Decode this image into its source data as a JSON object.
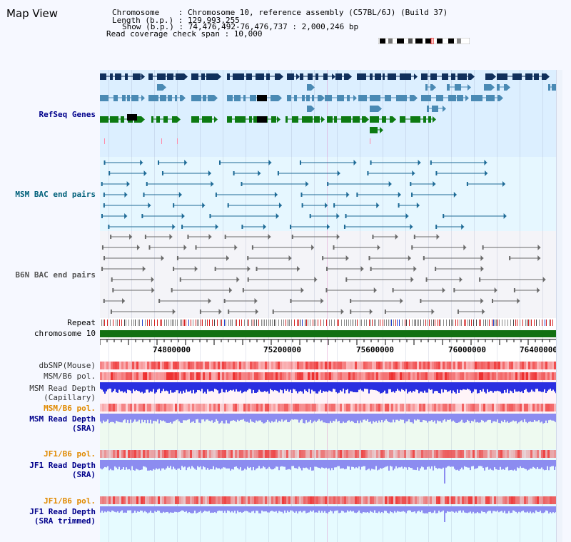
{
  "title": "Map View",
  "info": {
    "line1": "Chromosome    : Chromosome 10, reference assembly (C57BL/6J) (Build 37)",
    "line2": "Length (b.p.) : 129,993,255",
    "line3": "Show (b.p.) : 74,476,492-76,476,737 : 2,000,246 bp",
    "line4": "Read coverage check span : 10,000"
  },
  "tracks": {
    "refseq": "RefSeq Genes",
    "msm_bac": "MSM BAC end pairs",
    "b6n_bac": "B6N BAC end pairs",
    "repeat": "Repeat",
    "chromosome": "chromosome 10",
    "dbsnp": "dbSNP(Mouse)",
    "msm_pol1": "MSM/B6 pol.",
    "msm_depth_cap": "MSM Read Depth\n(Capillary)",
    "msm_pol2": "MSM/B6 pol.",
    "msm_depth_sra": "MSM Read Depth\n(SRA)",
    "jf1_pol1": "JF1/B6 pol.",
    "jf1_depth_sra": "JF1 Read Depth\n(SRA)",
    "jf1_pol2": "JF1/B6 pol.",
    "jf1_depth_trim": "JF1 Read Depth\n(SRA trimmed)"
  },
  "axis": {
    "ticks": [
      "74800000",
      "75200000",
      "75600000",
      "76000000",
      "76400000"
    ]
  },
  "colors": {
    "refseq_bg": "#dcefff",
    "bac_bg": "#e6f7ff",
    "b6n_bg": "#f4f4f8",
    "gene_navy": "#10305c",
    "gene_steel": "#4a8ab4",
    "gene_green": "#0d7a12",
    "chromosome_green": "#127012",
    "depth_blue": "#2a2fe0",
    "depth_violet": "#8c8cf0",
    "pol_red": "#ee3030",
    "label_navy": "#00008b",
    "label_orange": "#e08a00",
    "label_teal": "#00607a"
  }
}
